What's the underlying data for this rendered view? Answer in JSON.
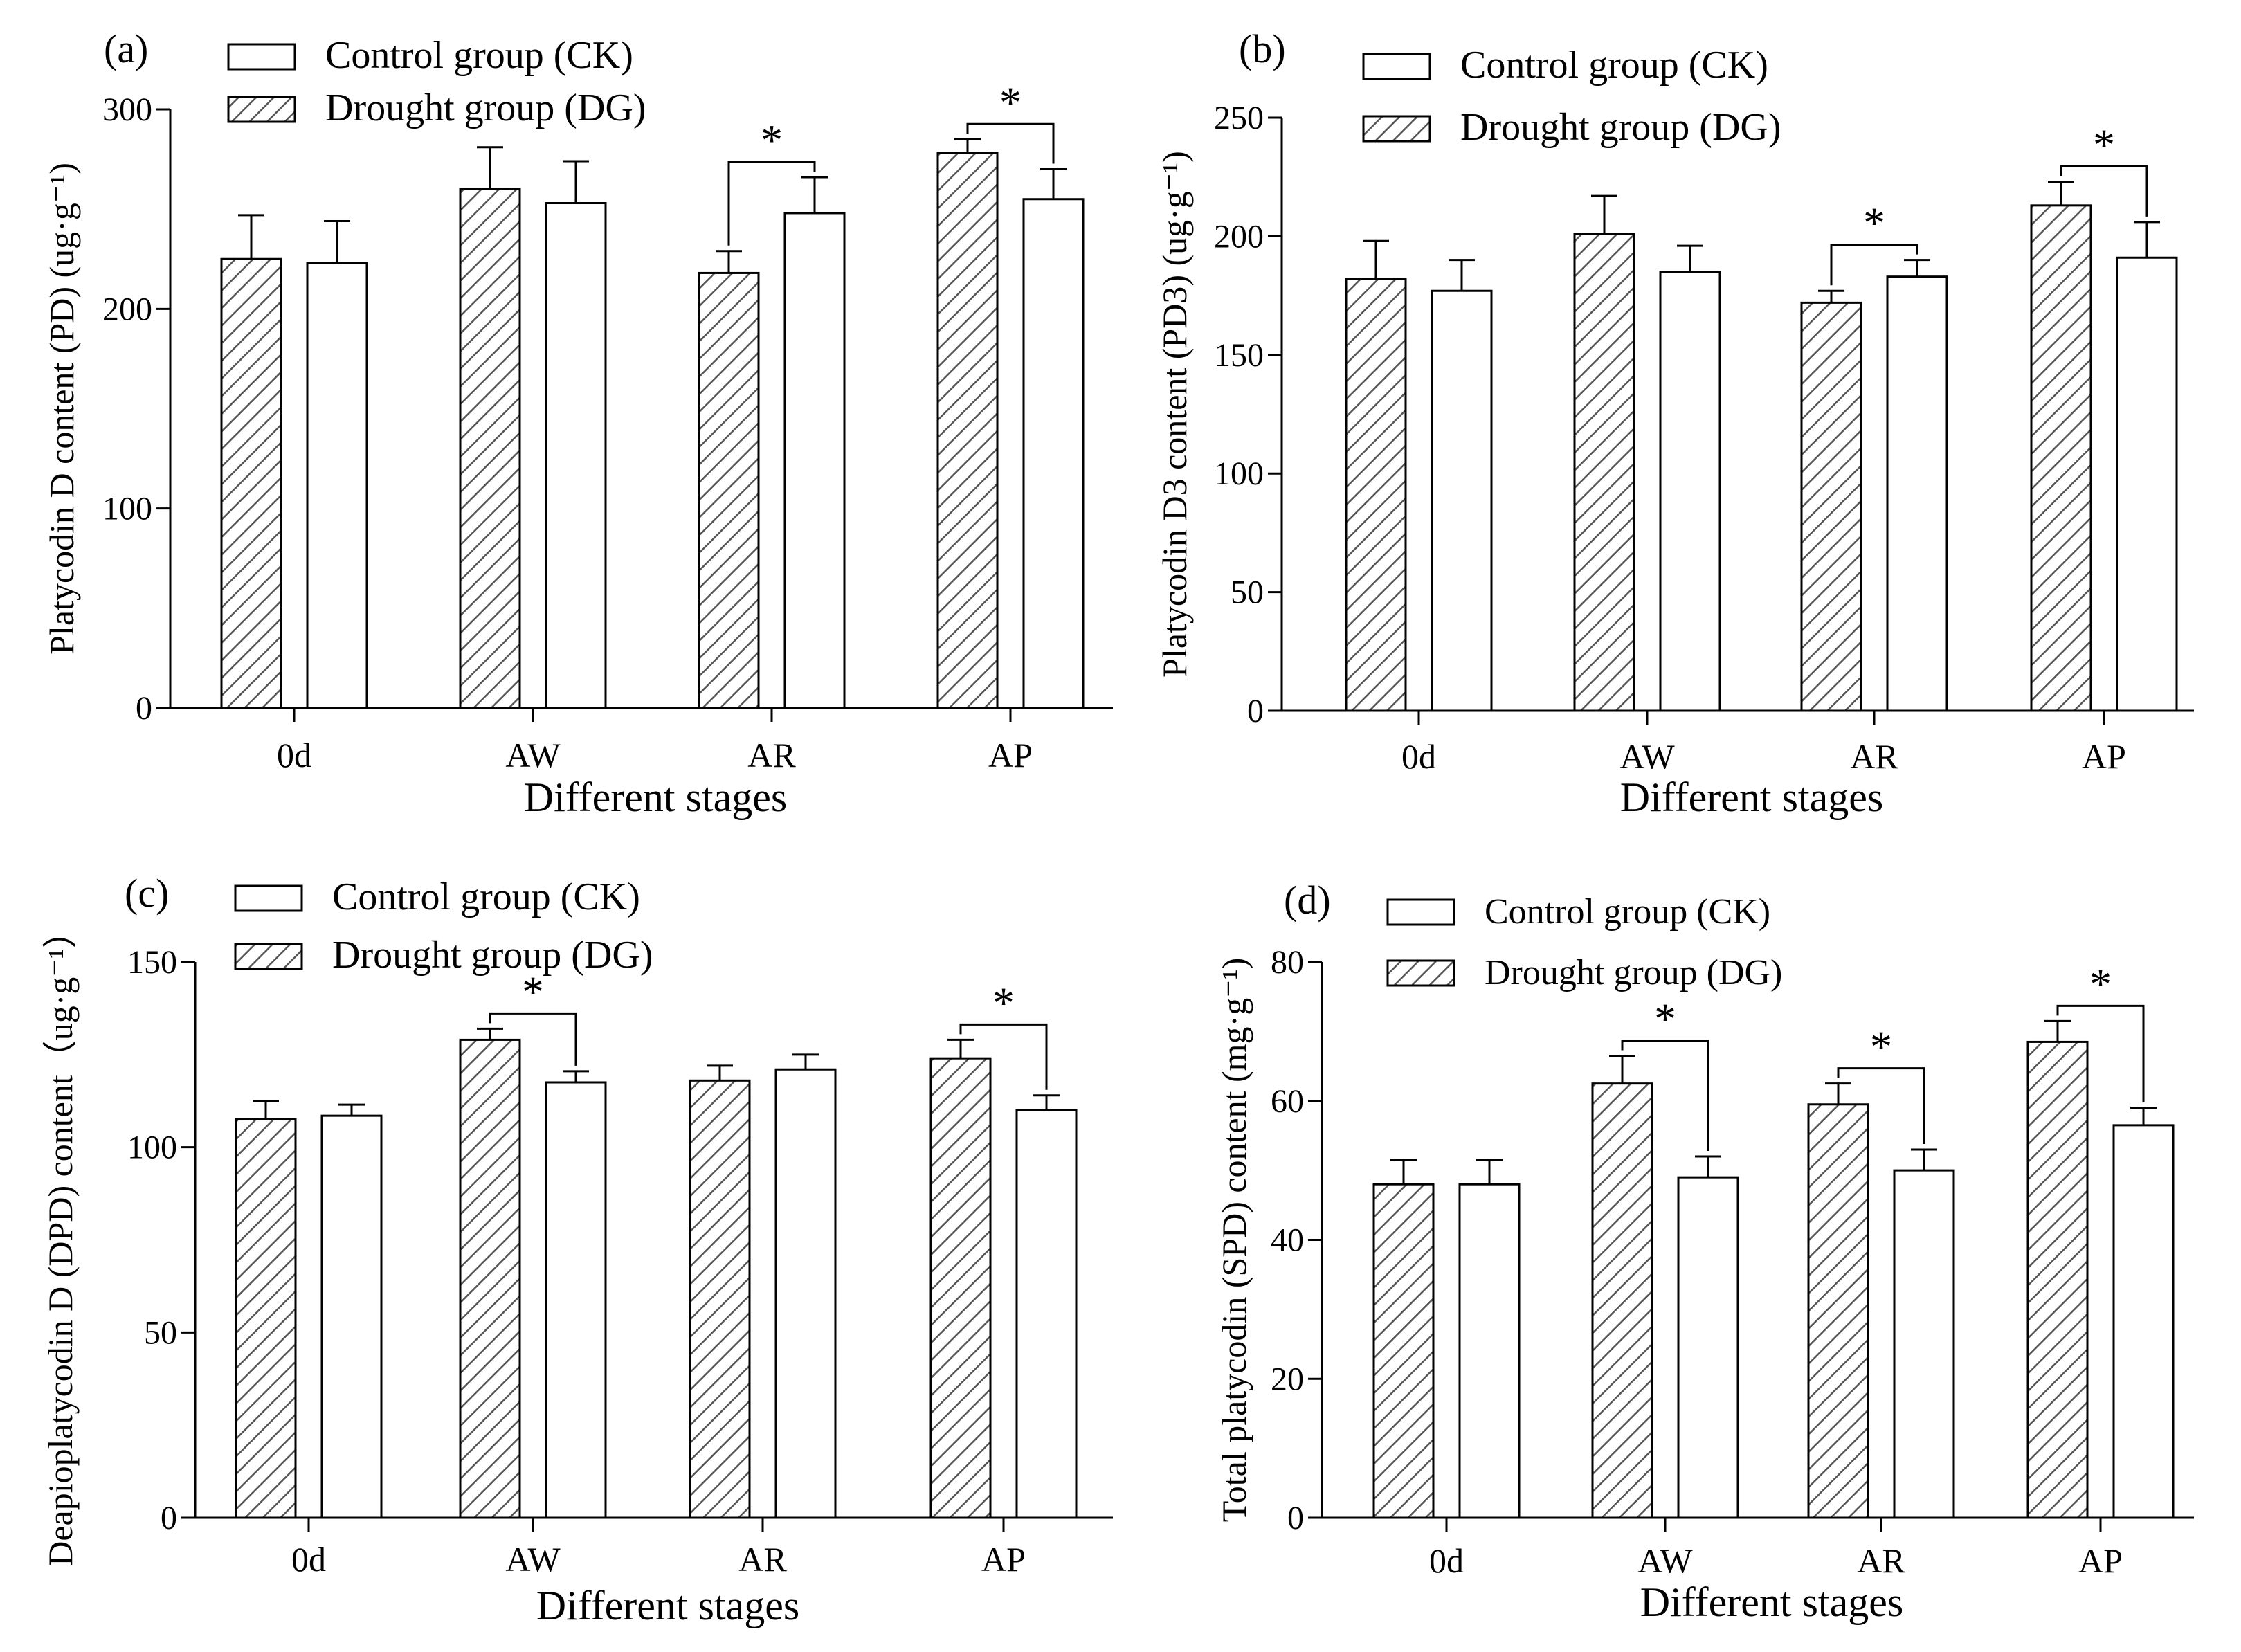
{
  "legend": {
    "ck_label": "Control group (CK)",
    "dg_label": "Drought group (DG)"
  },
  "colors": {
    "bar_stroke": "#000000",
    "ck_fill": "#ffffff",
    "dg_hatch": "#555555"
  },
  "chart_data": [
    {
      "panel_label": "(a)",
      "type": "bar",
      "categories": [
        "0d",
        "AW",
        "AR",
        "AP"
      ],
      "series": [
        {
          "name": "Drought group (DG)",
          "values": [
            225,
            260,
            218,
            278
          ],
          "errors": [
            22,
            21,
            11,
            7
          ]
        },
        {
          "name": "Control group (CK)",
          "values": [
            223,
            253,
            248,
            255
          ],
          "errors": [
            21,
            21,
            18,
            15
          ]
        }
      ],
      "xlabel": "Different stages",
      "ylabel": "Platycodin D content (PD) (ug·g⁻¹)",
      "ylim": [
        0,
        300
      ],
      "yticks": [
        0,
        100,
        200,
        300
      ],
      "significance": [
        {
          "category": "AR",
          "label": "*"
        },
        {
          "category": "AP",
          "label": "*"
        }
      ]
    },
    {
      "panel_label": "(b)",
      "type": "bar",
      "categories": [
        "0d",
        "AW",
        "AR",
        "AP"
      ],
      "series": [
        {
          "name": "Drought group (DG)",
          "values": [
            182,
            201,
            172,
            213
          ],
          "errors": [
            16,
            16,
            5,
            10
          ]
        },
        {
          "name": "Control group (CK)",
          "values": [
            177,
            185,
            183,
            191
          ],
          "errors": [
            13,
            11,
            7,
            15
          ]
        }
      ],
      "xlabel": "Different stages",
      "ylabel": "Platycodin D3 content (PD3) (ug·g⁻¹)",
      "ylim": [
        0,
        250
      ],
      "yticks": [
        0,
        50,
        100,
        150,
        200,
        250
      ],
      "significance": [
        {
          "category": "AR",
          "label": "*"
        },
        {
          "category": "AP",
          "label": "*"
        }
      ]
    },
    {
      "panel_label": "(c)",
      "type": "bar",
      "categories": [
        "0d",
        "AW",
        "AR",
        "AP"
      ],
      "series": [
        {
          "name": "Drought group (DG)",
          "values": [
            107.5,
            129,
            118,
            124
          ],
          "errors": [
            5,
            3,
            4,
            5
          ]
        },
        {
          "name": "Control group (CK)",
          "values": [
            108.5,
            117.5,
            121,
            110
          ],
          "errors": [
            3,
            3,
            4,
            4
          ]
        }
      ],
      "xlabel": "Different stages",
      "ylabel": "Deapioplatycodin D (DPD) content（ug·g⁻¹）",
      "ylim": [
        0,
        150
      ],
      "yticks": [
        0,
        50,
        100,
        150
      ],
      "significance": [
        {
          "category": "AW",
          "label": "*"
        },
        {
          "category": "AP",
          "label": "*"
        }
      ]
    },
    {
      "panel_label": "(d)",
      "type": "bar",
      "categories": [
        "0d",
        "AW",
        "AR",
        "AP"
      ],
      "series": [
        {
          "name": "Drought group (DG)",
          "values": [
            48,
            62.5,
            59.5,
            68.5
          ],
          "errors": [
            3.5,
            4,
            3,
            3
          ]
        },
        {
          "name": "Control group (CK)",
          "values": [
            48,
            49,
            50,
            56.5
          ],
          "errors": [
            3.5,
            3,
            3,
            2.5
          ]
        }
      ],
      "xlabel": "Different stages",
      "ylabel": "Total platycodin (SPD) content (mg·g⁻¹)",
      "ylim": [
        0,
        80
      ],
      "yticks": [
        0,
        20,
        40,
        60,
        80
      ],
      "significance": [
        {
          "category": "AW",
          "label": "*"
        },
        {
          "category": "AR",
          "label": "*"
        },
        {
          "category": "AP",
          "label": "*"
        }
      ]
    }
  ]
}
